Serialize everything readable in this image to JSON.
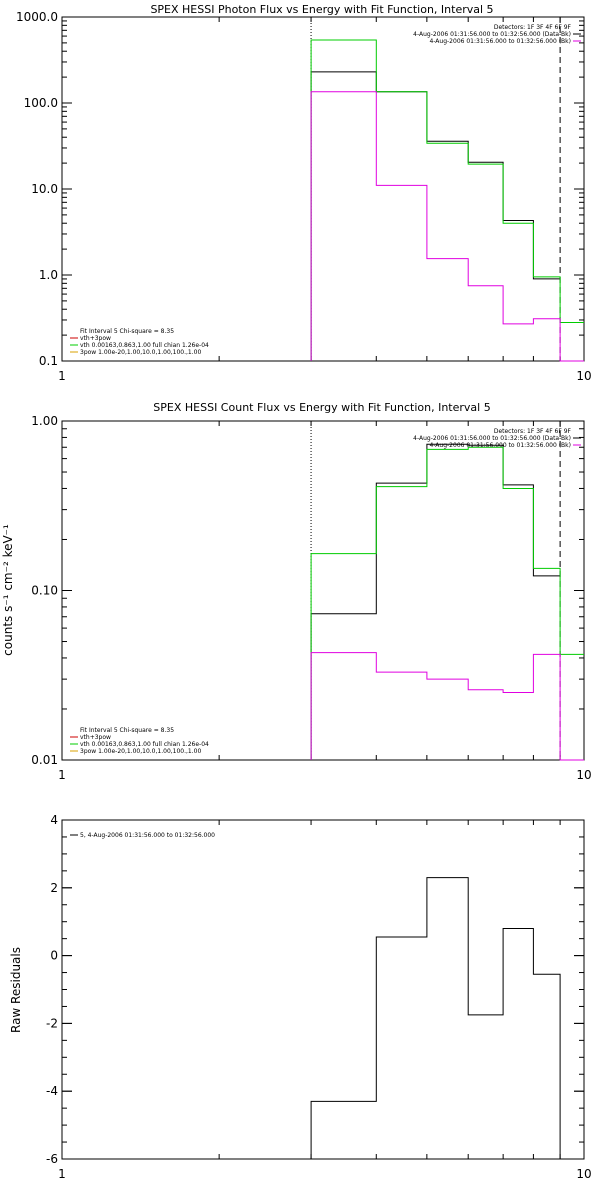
{
  "colors": {
    "black": "#000000",
    "green": "#00cc00",
    "magenta": "#e000e0",
    "red": "#cc0000",
    "orange": "#d8a000"
  },
  "chart_data": [
    {
      "type": "line",
      "step": true,
      "title": "SPEX HESSI Photon Flux vs Energy with Fit Function, Interval 5",
      "xlabel": "",
      "ylabel": "",
      "xscale": "log",
      "yscale": "log",
      "xlim": [
        1,
        10
      ],
      "ylim": [
        0.1,
        1000
      ],
      "xticks": [
        {
          "v": 1,
          "label": "1"
        },
        {
          "v": 10,
          "label": "10"
        }
      ],
      "yticks": [
        {
          "v": 0.1,
          "label": "0.1"
        },
        {
          "v": 1,
          "label": "1.0"
        },
        {
          "v": 10,
          "label": "10.0"
        },
        {
          "v": 100,
          "label": "100.0"
        },
        {
          "v": 1000,
          "label": "1000.0"
        }
      ],
      "vlines": [
        {
          "x": 3,
          "style": "dotted"
        },
        {
          "x": 9,
          "style": "dashed"
        }
      ],
      "bin_edges": [
        3,
        4,
        5,
        6,
        7,
        8,
        9,
        10
      ],
      "series": [
        {
          "color": "black",
          "values": [
            230,
            135,
            36,
            20.5,
            4.3,
            0.9
          ]
        },
        {
          "color": "green",
          "values": [
            540,
            135,
            34,
            19.5,
            4.0,
            0.95,
            0.28
          ]
        },
        {
          "color": "magenta",
          "values": [
            135,
            11,
            1.55,
            0.75,
            0.27,
            0.31,
            0.1
          ]
        }
      ],
      "legend_topright": [
        {
          "text": "Detectors: 1F 3F 4F 6F 9F",
          "color": ""
        },
        {
          "text": "4-Aug-2006 01:31:56.000 to 01:32:56.000 (Data-Bk)",
          "color": "black"
        },
        {
          "text": "4-Aug-2006 01:31:56.000 to 01:32:56.000 (Bk)",
          "color": "magenta"
        }
      ],
      "legend_bottomleft": [
        {
          "text": "Fit Interval 5   Chi-square = 8.35",
          "color": ""
        },
        {
          "text": "vth+3pow",
          "color": "red"
        },
        {
          "text": "vth 0.00163,0.863,1.00   full chian 1.26e-04",
          "color": "green"
        },
        {
          "text": "3pow 1.00e-20,1.00,10.0,1.00,100.,1.00",
          "color": "orange"
        }
      ]
    },
    {
      "type": "line",
      "step": true,
      "title": "SPEX HESSI Count Flux vs Energy with Fit Function, Interval 5",
      "xlabel": "",
      "ylabel": "counts s⁻¹ cm⁻² keV⁻¹",
      "xscale": "log",
      "yscale": "log",
      "xlim": [
        1,
        10
      ],
      "ylim": [
        0.01,
        1
      ],
      "xticks": [
        {
          "v": 1,
          "label": "1"
        },
        {
          "v": 10,
          "label": "10"
        }
      ],
      "yticks": [
        {
          "v": 0.01,
          "label": "0.01"
        },
        {
          "v": 0.1,
          "label": "0.10"
        },
        {
          "v": 1,
          "label": "1.00"
        }
      ],
      "vlines": [
        {
          "x": 3,
          "style": "dotted"
        },
        {
          "x": 9,
          "style": "dashed"
        }
      ],
      "bin_edges": [
        3,
        4,
        5,
        6,
        7,
        8,
        9,
        10
      ],
      "series": [
        {
          "color": "black",
          "values": [
            0.073,
            0.43,
            0.73,
            0.72,
            0.42,
            0.122
          ]
        },
        {
          "color": "green",
          "values": [
            0.165,
            0.41,
            0.68,
            0.7,
            0.4,
            0.135,
            0.042
          ]
        },
        {
          "color": "magenta",
          "values": [
            0.043,
            0.033,
            0.03,
            0.026,
            0.025,
            0.042,
            0.01
          ]
        }
      ],
      "legend_topright": [
        {
          "text": "Detectors: 1F 3F 4F 6F 9F",
          "color": ""
        },
        {
          "text": "4-Aug-2006 01:31:56.000 to 01:32:56.000 (Data-Bk)",
          "color": "black"
        },
        {
          "text": "4-Aug-2006 01:31:56.000 to 01:32:56.000 (Bk)",
          "color": "magenta"
        }
      ],
      "legend_bottomleft": [
        {
          "text": "Fit Interval 5   Chi-square = 8.35",
          "color": ""
        },
        {
          "text": "vth+3pow",
          "color": "red"
        },
        {
          "text": "vth 0.00163,0.863,1.00   full chian 1.26e-04",
          "color": "green"
        },
        {
          "text": "3pow 1.00e-20,1.00,10.0,1.00,100.,1.00",
          "color": "orange"
        }
      ]
    },
    {
      "type": "line",
      "step": true,
      "title": "",
      "xlabel": "",
      "ylabel": "Raw Residuals",
      "xscale": "log",
      "yscale": "linear",
      "xlim": [
        1,
        10
      ],
      "ylim": [
        -6,
        4
      ],
      "xticks": [
        {
          "v": 1,
          "label": "1"
        },
        {
          "v": 10,
          "label": "10"
        }
      ],
      "yticks": [
        {
          "v": -6,
          "label": "-6"
        },
        {
          "v": -4,
          "label": "-4"
        },
        {
          "v": -2,
          "label": "-2"
        },
        {
          "v": 0,
          "label": "0"
        },
        {
          "v": 2,
          "label": "2"
        },
        {
          "v": 4,
          "label": "4"
        }
      ],
      "vlines": [],
      "bin_edges": [
        3,
        4,
        5,
        6,
        7,
        8,
        9
      ],
      "series": [
        {
          "color": "black",
          "values": [
            -4.3,
            0.55,
            2.3,
            -1.75,
            0.8,
            -0.55
          ],
          "drop_to_bottom": true
        }
      ],
      "legend_topleft": [
        {
          "text": "5,  4-Aug-2006 01:31:56.000 to 01:32:56.000",
          "color": "black"
        }
      ]
    }
  ]
}
